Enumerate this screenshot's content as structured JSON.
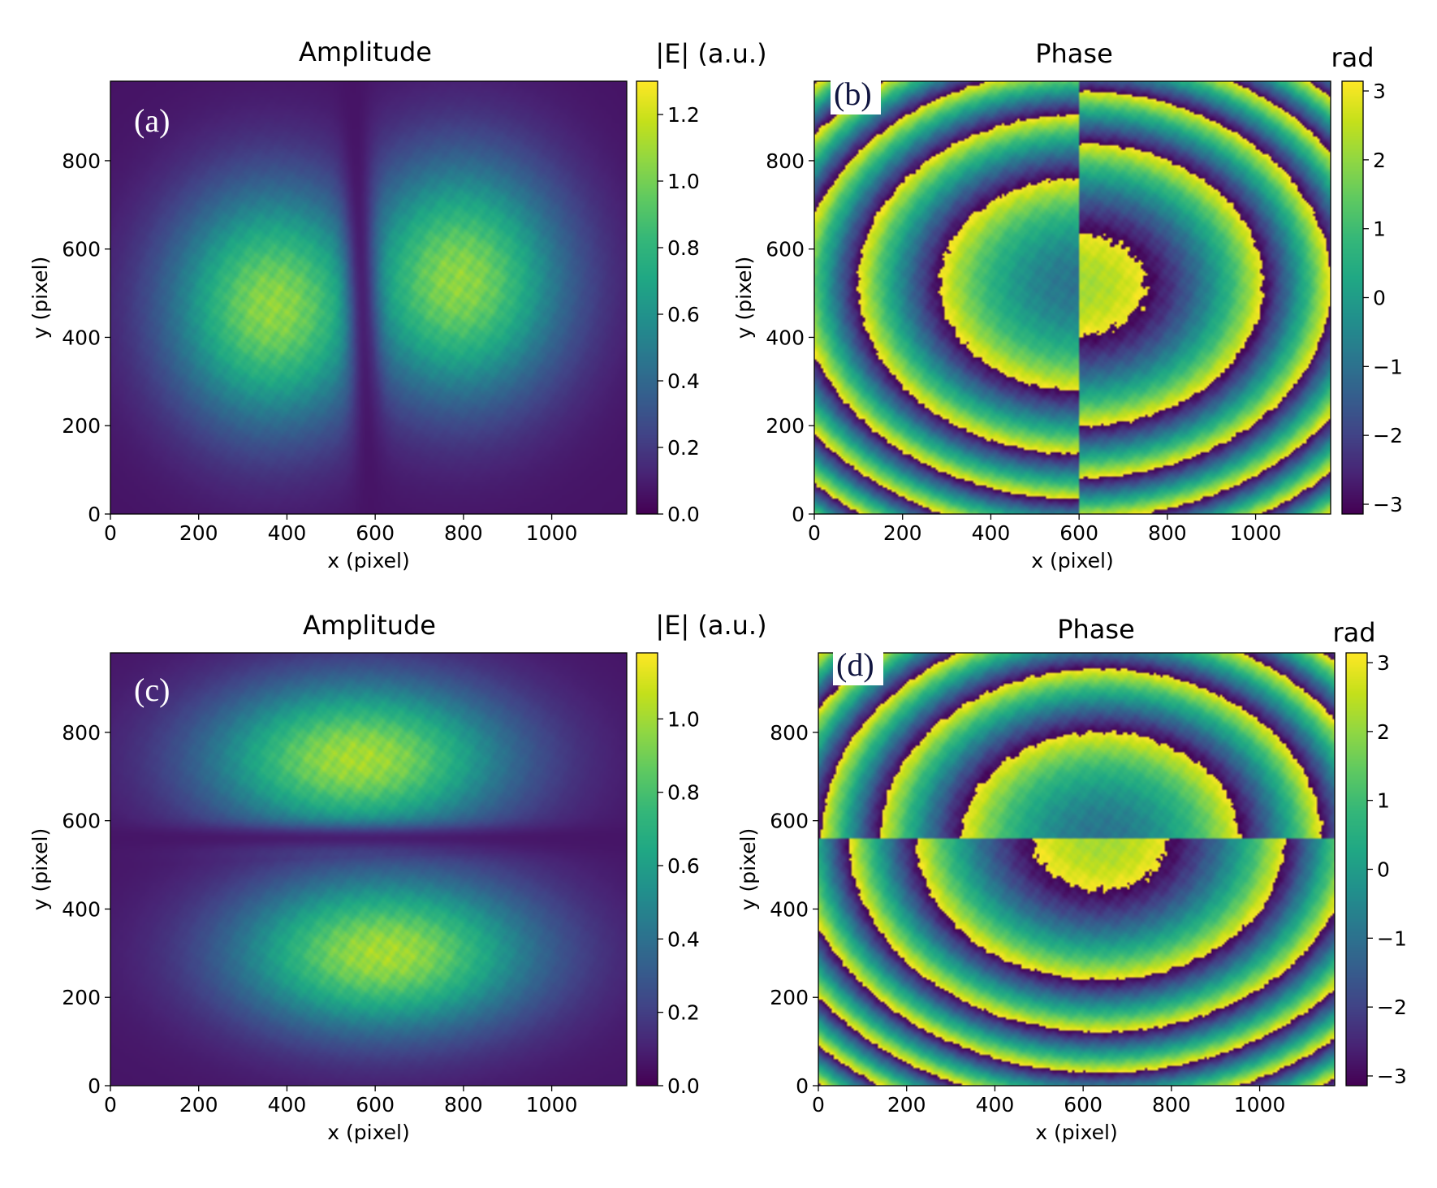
{
  "chart_data": [
    {
      "type": "heatmap",
      "panel_label": "(a)",
      "title": "Amplitude",
      "xlabel": "x (pixel)",
      "ylabel": "y (pixel)",
      "xlim": [
        0,
        1170
      ],
      "ylim": [
        0,
        980
      ],
      "xticks": [
        0,
        200,
        400,
        600,
        800,
        1000
      ],
      "yticks": [
        0,
        200,
        400,
        600,
        800
      ],
      "colorbar": {
        "label": "|E| (a.u.)",
        "range": [
          0.0,
          1.3
        ],
        "ticks": [
          "0.0",
          "0.2",
          "0.4",
          "0.6",
          "0.8",
          "1.0",
          "1.2"
        ],
        "tick_values": [
          0,
          0.2,
          0.4,
          0.6,
          0.8,
          1.0,
          1.2
        ]
      },
      "field": {
        "pattern": "two-lobe-horizontal",
        "lobes": [
          {
            "x": 370,
            "y": 470
          },
          {
            "x": 790,
            "y": 530
          }
        ],
        "node_line_x": 570,
        "peak": 1.0
      }
    },
    {
      "type": "heatmap",
      "panel_label": "(b)",
      "title": "Phase",
      "xlabel": "x (pixel)",
      "ylabel": "y (pixel)",
      "xlim": [
        0,
        1170
      ],
      "ylim": [
        0,
        980
      ],
      "xticks": [
        0,
        200,
        400,
        600,
        800,
        1000
      ],
      "yticks": [
        0,
        200,
        400,
        600,
        800
      ],
      "colorbar": {
        "label": "rad",
        "range": [
          -3.1416,
          3.1416
        ],
        "ticks": [
          "3",
          "2",
          "1",
          "0",
          "−1",
          "−2",
          "−3"
        ],
        "tick_values": [
          3,
          2,
          1,
          0,
          -1,
          -2,
          -3
        ]
      },
      "field": {
        "pattern": "phase-jump-vertical",
        "center": {
          "x": 600,
          "y": 520
        }
      }
    },
    {
      "type": "heatmap",
      "panel_label": "(c)",
      "title": "Amplitude",
      "xlabel": "x (pixel)",
      "ylabel": "y (pixel)",
      "xlim": [
        0,
        1170
      ],
      "ylim": [
        0,
        980
      ],
      "xticks": [
        0,
        200,
        400,
        600,
        800,
        1000
      ],
      "yticks": [
        0,
        200,
        400,
        600,
        800
      ],
      "colorbar": {
        "label": "|E| (a.u.)",
        "range": [
          0.0,
          1.18
        ],
        "ticks": [
          "0.0",
          "0.2",
          "0.4",
          "0.6",
          "0.8",
          "1.0"
        ],
        "tick_values": [
          0,
          0.2,
          0.4,
          0.6,
          0.8,
          1.0
        ]
      },
      "field": {
        "pattern": "two-lobe-vertical",
        "lobes": [
          {
            "x": 560,
            "y": 740
          },
          {
            "x": 620,
            "y": 300
          }
        ],
        "node_line_y": 560,
        "peak": 0.95
      }
    },
    {
      "type": "heatmap",
      "panel_label": "(d)",
      "title": "Phase",
      "xlabel": "x (pixel)",
      "ylabel": "y (pixel)",
      "xlim": [
        0,
        1170
      ],
      "ylim": [
        0,
        980
      ],
      "xticks": [
        0,
        200,
        400,
        600,
        800,
        1000
      ],
      "yticks": [
        0,
        200,
        400,
        600,
        800
      ],
      "colorbar": {
        "label": "rad",
        "range": [
          -3.1416,
          3.1416
        ],
        "ticks": [
          "3",
          "2",
          "1",
          "0",
          "−1",
          "−2",
          "−3"
        ],
        "tick_values": [
          3,
          2,
          1,
          0,
          -1,
          -2,
          -3
        ]
      },
      "field": {
        "pattern": "phase-jump-horizontal",
        "center": {
          "x": 640,
          "y": 560
        }
      }
    }
  ]
}
